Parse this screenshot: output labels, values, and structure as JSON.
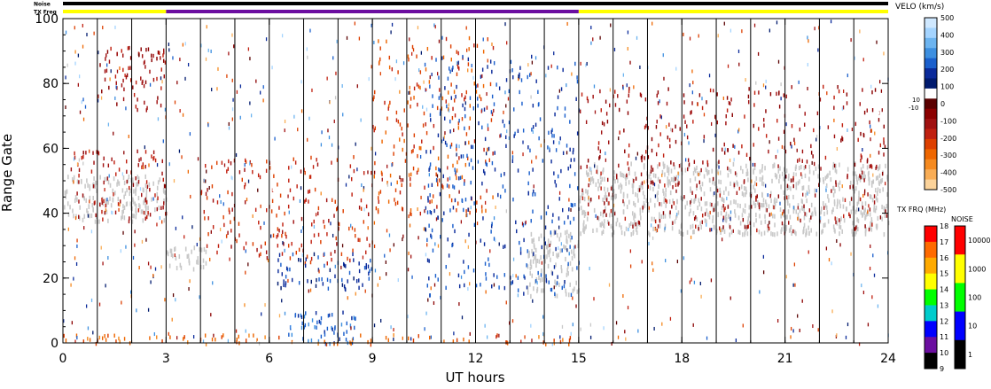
{
  "chart_data": {
    "type": "heatmap",
    "title": "",
    "xlabel": "UT hours",
    "ylabel": "Range Gate",
    "xlim": [
      0,
      24
    ],
    "ylim": [
      0,
      100
    ],
    "x_ticks": [
      "0",
      "3",
      "6",
      "9",
      "12",
      "15",
      "18",
      "21",
      "24"
    ],
    "y_ticks": [
      "0",
      "20",
      "40",
      "60",
      "80",
      "100"
    ],
    "scan_boundaries_ut": [
      1,
      2,
      3,
      4,
      5,
      6,
      7,
      8,
      9,
      10,
      11,
      12,
      13,
      14,
      15,
      16,
      17,
      18,
      19,
      20,
      21,
      22,
      23
    ],
    "top_bars": {
      "noise_label": "Noise",
      "txfreq_label": "TX Freq",
      "noise_color": "#000000",
      "txfreq_segments": [
        {
          "start": 0,
          "end": 3,
          "color": "#ffff00"
        },
        {
          "start": 3,
          "end": 15,
          "color": "#6b0ea0"
        },
        {
          "start": 15,
          "end": 24,
          "color": "#ffff00"
        }
      ]
    },
    "scatter_color": "#c8c8c8",
    "velocity_colorbar": {
      "title": "VELO (km/s)",
      "ticks": [
        "500",
        "400",
        "300",
        "200",
        "100",
        "0",
        "-100",
        "-200",
        "-300",
        "-400",
        "-500"
      ],
      "extra_ticks": [
        "10",
        "-10"
      ],
      "colors": [
        "#cfe8ff",
        "#a4d4ff",
        "#6cb4f0",
        "#3d8fe0",
        "#1a5fcc",
        "#0a2a9a",
        "#001a6e",
        "#ffffff",
        "#5a0000",
        "#8b0000",
        "#a01010",
        "#c02010",
        "#dd3f00",
        "#ee6600",
        "#f58a20",
        "#f9ad55",
        "#fcd39a"
      ]
    },
    "txfreq_colorbar": {
      "title": "TX FRQ (MHz)",
      "ticks": [
        "18",
        "17",
        "16",
        "15",
        "14",
        "13",
        "12",
        "11",
        "10",
        "9"
      ],
      "colors": [
        "#ff0000",
        "#ff6a00",
        "#ffaa00",
        "#ffff00",
        "#00ff00",
        "#00cccc",
        "#0000ff",
        "#6b0ea0",
        "#000000"
      ]
    },
    "noise_colorbar": {
      "title": "NOISE",
      "ticks": [
        "10000",
        "1000",
        "100",
        "10",
        "1"
      ],
      "colors": [
        "#ff0000",
        "#ffff00",
        "#00ff00",
        "#0000ff",
        "#000000"
      ]
    },
    "scatter_regions": [
      {
        "ut_start": 0.0,
        "ut_end": 3.0,
        "gate_low": 38,
        "gate_high": 52,
        "velocity": 0,
        "label": "ground scatter"
      },
      {
        "ut_start": 15.0,
        "ut_end": 24.0,
        "gate_low": 34,
        "gate_high": 56,
        "velocity": 0,
        "label": "ground scatter"
      },
      {
        "ut_start": 13.5,
        "ut_end": 15.0,
        "gate_low": 15,
        "gate_high": 35,
        "velocity": 0,
        "label": "ground scatter"
      },
      {
        "ut_start": 3.0,
        "ut_end": 4.2,
        "gate_low": 23,
        "gate_high": 30,
        "velocity": 0,
        "label": "ground scatter"
      }
    ],
    "velocity_features": [
      {
        "ut_start": 0.2,
        "ut_end": 3.0,
        "gate_low": 38,
        "gate_high": 60,
        "velocity": -150
      },
      {
        "ut_start": 1.0,
        "ut_end": 3.0,
        "gate_low": 72,
        "gate_high": 92,
        "velocity": -120
      },
      {
        "ut_start": 4.0,
        "ut_end": 9.0,
        "gate_low": 25,
        "gate_high": 58,
        "velocity": -200
      },
      {
        "ut_start": 6.0,
        "ut_end": 9.0,
        "gate_low": 17,
        "gate_high": 28,
        "velocity": 200
      },
      {
        "ut_start": 6.5,
        "ut_end": 8.5,
        "gate_low": 0,
        "gate_high": 10,
        "velocity": 250
      },
      {
        "ut_start": 9.0,
        "ut_end": 12.5,
        "gate_low": 40,
        "gate_high": 95,
        "velocity": -250
      },
      {
        "ut_start": 10.5,
        "ut_end": 15.0,
        "gate_low": 15,
        "gate_high": 90,
        "velocity": 220
      },
      {
        "ut_start": 0.0,
        "ut_end": 15.0,
        "gate_low": 0,
        "gate_high": 3,
        "velocity": -300
      },
      {
        "ut_start": 15.0,
        "ut_end": 24.0,
        "gate_low": 35,
        "gate_high": 80,
        "velocity": -120
      }
    ]
  }
}
